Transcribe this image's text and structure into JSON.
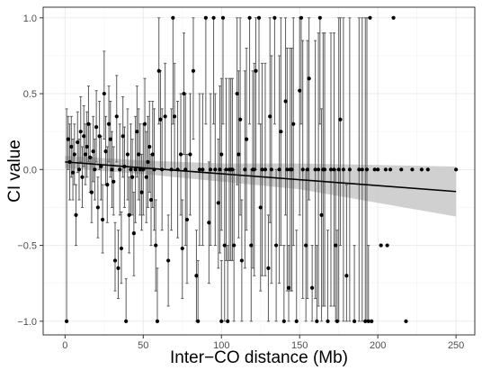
{
  "chart_data": {
    "type": "scatter",
    "title": "",
    "xlabel": "Inter−CO distance (Mb)",
    "ylabel": "CI value",
    "xlim": [
      -14,
      262
    ],
    "ylim": [
      -1.09,
      1.07
    ],
    "xticks": [
      0,
      50,
      100,
      150,
      200,
      250
    ],
    "xtick_labels": [
      "0",
      "50",
      "100",
      "150",
      "200",
      "250"
    ],
    "yticks": [
      -1.0,
      -0.5,
      0.0,
      0.5,
      1.0
    ],
    "ytick_labels": [
      "−1.0",
      "−0.5",
      "0.0",
      "0.5",
      "1.0"
    ],
    "grid": true,
    "legend": "none",
    "colors": {
      "points": "#000000",
      "error_bars": "#5a5a5a",
      "fit_line": "#000000",
      "ribbon": "#c8c8c8",
      "panel_border": "#333333",
      "grid": "#ebebeb"
    },
    "regression": {
      "method": "linear",
      "fit": [
        [
          0,
          0.05
        ],
        [
          250,
          -0.145
        ]
      ],
      "ci_upper": [
        [
          0,
          0.09
        ],
        [
          50,
          0.06
        ],
        [
          100,
          0.04
        ],
        [
          150,
          0.04
        ],
        [
          250,
          0.02
        ]
      ],
      "ci_lower": [
        [
          0,
          0.01
        ],
        [
          50,
          -0.03
        ],
        [
          100,
          -0.08
        ],
        [
          150,
          -0.13
        ],
        [
          250,
          -0.31
        ]
      ]
    },
    "series": [
      {
        "marker": "point",
        "x": [
          1,
          2,
          3,
          4,
          5,
          6,
          7,
          8,
          9,
          10,
          11,
          12,
          13,
          14,
          15,
          16,
          17,
          18,
          19,
          20,
          21,
          22,
          23,
          24,
          25,
          26,
          27,
          28,
          29,
          30,
          31,
          32,
          33,
          34,
          35,
          36,
          37,
          38,
          39,
          40,
          41,
          42,
          43,
          44,
          45,
          46,
          47,
          48,
          49,
          50,
          51,
          52,
          53,
          54,
          55,
          56,
          57,
          58,
          59,
          60,
          61,
          62,
          64,
          66,
          68,
          69,
          70,
          72,
          74,
          75,
          76,
          77,
          78,
          80,
          82,
          84,
          85,
          86,
          88,
          90,
          92,
          93,
          95,
          96,
          98,
          99,
          100,
          100,
          101,
          102,
          103,
          104,
          105,
          106,
          107,
          108,
          110,
          111,
          112,
          113,
          115,
          116,
          118,
          119,
          120,
          121,
          122,
          124,
          125,
          126,
          128,
          130,
          131,
          132,
          134,
          135,
          137,
          138,
          140,
          141,
          142,
          143,
          144,
          145,
          146,
          148,
          150,
          151,
          152,
          154,
          155,
          156,
          158,
          160,
          161,
          162,
          163,
          164,
          165,
          166,
          168,
          170,
          172,
          173,
          174,
          175,
          176,
          178,
          180,
          182,
          185,
          188,
          190,
          192,
          193,
          194,
          195,
          196,
          198,
          200,
          202,
          205,
          206,
          208,
          210,
          215,
          218,
          222,
          228,
          232,
          250
        ],
        "y": [
          -1.0,
          0.2,
          0.05,
          0.15,
          -0.02,
          0.1,
          -0.3,
          0.18,
          0.0,
          0.25,
          -0.05,
          0.22,
          0.1,
          0.15,
          0.3,
          0.08,
          -0.15,
          0.12,
          0.0,
          0.28,
          -0.25,
          0.22,
          0.02,
          -0.33,
          0.5,
          0.12,
          -0.1,
          0.3,
          0.2,
          0.0,
          -0.08,
          -0.6,
          0.35,
          -0.65,
          0.0,
          -0.52,
          0.22,
          0.02,
          -1.0,
          0.1,
          -0.3,
          0.0,
          -0.05,
          -0.42,
          0.0,
          0.25,
          0.1,
          0.0,
          -0.15,
          0.0,
          0.3,
          -0.05,
          0.05,
          0.15,
          -0.2,
          0.1,
          0.0,
          -0.5,
          -1.0,
          0.65,
          0.33,
          0.0,
          0.35,
          -0.6,
          0.0,
          1.0,
          0.35,
          0.0,
          0.1,
          -0.52,
          0.5,
          0.0,
          -0.33,
          0.1,
          0.65,
          -0.7,
          -1.0,
          0.0,
          0.0,
          1.0,
          -0.35,
          0.0,
          1.0,
          0.0,
          -0.22,
          0.0,
          0.1,
          -1.0,
          1.0,
          -0.5,
          0.0,
          -1.0,
          0.0,
          0.0,
          0.0,
          -0.5,
          0.5,
          0.1,
          0.33,
          -0.6,
          0.0,
          0.2,
          1.0,
          -0.5,
          0.0,
          0.0,
          0.65,
          1.0,
          -0.25,
          0.0,
          0.0,
          -0.65,
          0.35,
          0.0,
          1.0,
          -0.5,
          0.0,
          0.25,
          -1.0,
          0.45,
          0.0,
          -0.78,
          0.0,
          0.0,
          0.3,
          -1.0,
          0.52,
          1.0,
          0.0,
          -0.5,
          0.0,
          0.6,
          -0.78,
          0.0,
          -1.0,
          0.0,
          1.0,
          -0.3,
          0.0,
          0.0,
          -1.0,
          0.0,
          0.0,
          -0.5,
          -1.0,
          0.0,
          0.33,
          0.0,
          -0.7,
          0.0,
          -1.0,
          0.0,
          0.0,
          -1.0,
          0.0,
          -1.0,
          1.0,
          -1.0,
          0.0,
          0.0,
          -0.5,
          0.0,
          -0.5,
          0.0,
          1.0,
          0.0,
          -1.0,
          0.0,
          0.0,
          0.0,
          0.0
        ],
        "err_low": [
          -1.0,
          0.0,
          -0.2,
          -0.05,
          -0.2,
          -0.1,
          -0.5,
          -0.02,
          -0.2,
          0.05,
          -0.25,
          0.02,
          -0.1,
          -0.05,
          0.05,
          -0.15,
          -0.35,
          -0.08,
          -0.2,
          0.05,
          -0.45,
          0.0,
          -0.2,
          -0.55,
          0.2,
          -0.1,
          -0.35,
          0.05,
          -0.05,
          -0.25,
          -0.3,
          -0.8,
          0.05,
          -0.85,
          -0.3,
          -0.75,
          -0.05,
          -0.25,
          -1.0,
          -0.2,
          -0.55,
          -0.3,
          -0.3,
          -0.7,
          -0.35,
          -0.05,
          -0.2,
          -0.3,
          -0.4,
          -0.3,
          0.0,
          -0.35,
          -0.25,
          -0.15,
          -0.5,
          -0.25,
          -0.4,
          -0.8,
          -1.0,
          0.3,
          0.0,
          -0.4,
          0.0,
          -0.9,
          -0.4,
          0.3,
          0.0,
          -0.45,
          -0.3,
          -0.85,
          0.1,
          -0.5,
          -0.75,
          -0.3,
          0.2,
          -1.0,
          -1.0,
          -0.5,
          -0.5,
          0.3,
          -0.75,
          -0.5,
          0.3,
          -0.5,
          -0.65,
          -0.55,
          -0.4,
          -1.0,
          0.3,
          -1.0,
          -0.6,
          -1.0,
          -0.6,
          -0.6,
          -0.6,
          -1.0,
          -0.1,
          -0.45,
          -0.3,
          -1.0,
          -0.65,
          -0.4,
          0.3,
          -1.0,
          -0.65,
          -0.7,
          0.0,
          0.3,
          -0.8,
          -0.7,
          -0.7,
          -1.0,
          -0.35,
          -0.75,
          0.3,
          -1.0,
          -0.75,
          -0.5,
          -1.0,
          -0.3,
          -0.8,
          -1.0,
          -0.8,
          -0.8,
          -0.5,
          -1.0,
          -0.3,
          0.3,
          -0.85,
          -1.0,
          -0.85,
          -0.2,
          -1.0,
          -0.85,
          -1.0,
          -0.9,
          0.3,
          -1.0,
          -0.9,
          -0.9,
          -1.0,
          -0.9,
          -0.9,
          -1.0,
          -1.0,
          -1.0,
          -0.5,
          -1.0,
          -1.0,
          -1.0,
          -1.0,
          -1.0,
          -1.0,
          -1.0,
          -1.0,
          -1.0,
          1.0,
          -1.0,
          0.0,
          0.0,
          -0.5,
          0.0,
          -0.5,
          0.0,
          1.0,
          0.0,
          -1.0,
          0.0,
          0.0,
          0.0,
          0.0
        ],
        "err_high": [
          0.4,
          0.35,
          0.3,
          0.35,
          0.2,
          0.3,
          -0.1,
          0.38,
          0.2,
          0.48,
          0.15,
          0.42,
          0.3,
          0.38,
          0.55,
          0.3,
          0.08,
          0.35,
          0.2,
          0.52,
          -0.05,
          0.45,
          0.22,
          -0.1,
          0.78,
          0.35,
          0.15,
          0.55,
          0.45,
          0.25,
          0.15,
          -0.35,
          0.62,
          -0.4,
          0.3,
          -0.28,
          0.48,
          0.28,
          -0.72,
          0.4,
          -0.05,
          0.3,
          0.2,
          -0.15,
          0.35,
          0.55,
          0.4,
          0.3,
          0.1,
          0.3,
          0.6,
          0.25,
          0.35,
          0.45,
          0.1,
          0.45,
          0.4,
          -0.2,
          -0.65,
          1.0,
          0.65,
          0.4,
          0.7,
          -0.3,
          0.4,
          1.0,
          0.7,
          0.45,
          0.5,
          -0.2,
          0.9,
          0.5,
          0.1,
          0.5,
          1.0,
          -0.4,
          -0.6,
          0.5,
          0.5,
          1.0,
          0.05,
          0.5,
          1.0,
          0.5,
          0.2,
          0.55,
          0.6,
          -0.6,
          1.0,
          0.0,
          0.6,
          -0.5,
          0.6,
          0.6,
          0.6,
          0.0,
          1.0,
          0.65,
          1.0,
          -0.2,
          0.65,
          0.8,
          1.0,
          0.0,
          0.65,
          0.7,
          1.0,
          1.0,
          0.3,
          0.7,
          0.7,
          -0.3,
          1.0,
          0.75,
          1.0,
          0.0,
          0.75,
          1.0,
          -0.5,
          1.0,
          0.8,
          -0.5,
          0.8,
          0.8,
          1.0,
          -0.4,
          1.0,
          1.0,
          0.85,
          0.0,
          0.85,
          1.0,
          -0.5,
          0.85,
          -0.5,
          0.9,
          1.0,
          0.4,
          0.9,
          0.9,
          -0.4,
          0.9,
          0.9,
          0.0,
          -0.4,
          1.0,
          1.0,
          1.0,
          -0.1,
          1.0,
          -0.5,
          1.0,
          1.0,
          1.0,
          1.0,
          -0.5,
          1.0,
          -1.0,
          0.0,
          0.0,
          -0.5,
          0.0,
          -0.5,
          0.0,
          1.0,
          0.0,
          -1.0,
          0.0,
          0.0,
          0.0,
          0.0
        ]
      }
    ]
  }
}
